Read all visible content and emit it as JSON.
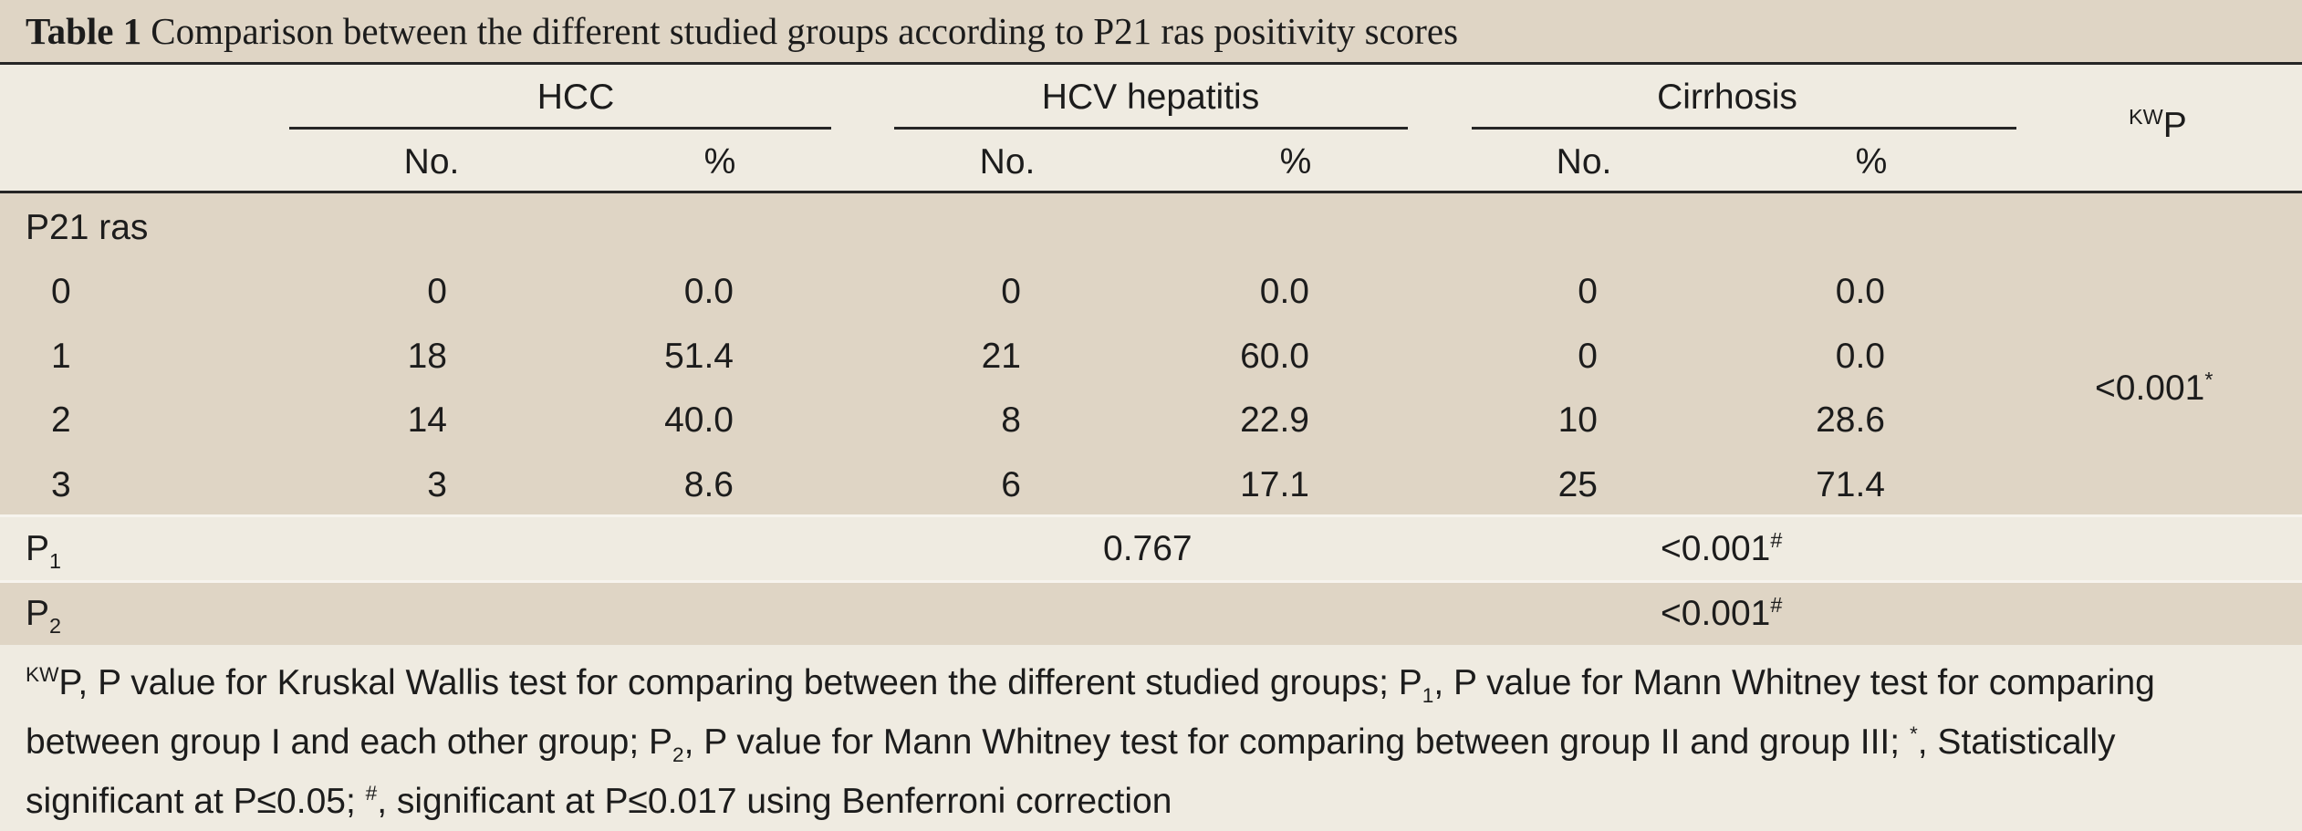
{
  "title": {
    "label": "Table 1",
    "text": "Comparison between the different studied groups according to P21 ras positivity scores"
  },
  "header": {
    "groups": [
      "HCC",
      "HCV hepatitis",
      "Cirrhosis"
    ],
    "subcols": [
      "No.",
      "%",
      "No.",
      "%",
      "No.",
      "%"
    ],
    "kw_sup": "KW",
    "kw_p": "P"
  },
  "row_group_label": "P21 ras",
  "rows": [
    {
      "score": "0",
      "hcc_no": "0",
      "hcc_pct": "0.0",
      "hcv_no": "0",
      "hcv_pct": "0.0",
      "cir_no": "0",
      "cir_pct": "0.0"
    },
    {
      "score": "1",
      "hcc_no": "18",
      "hcc_pct": "51.4",
      "hcv_no": "21",
      "hcv_pct": "60.0",
      "cir_no": "0",
      "cir_pct": "0.0"
    },
    {
      "score": "2",
      "hcc_no": "14",
      "hcc_pct": "40.0",
      "hcv_no": "8",
      "hcv_pct": "22.9",
      "cir_no": "10",
      "cir_pct": "28.6"
    },
    {
      "score": "3",
      "hcc_no": "3",
      "hcc_pct": "8.6",
      "hcv_no": "6",
      "hcv_pct": "17.1",
      "cir_no": "25",
      "cir_pct": "71.4"
    }
  ],
  "kw_value": "<0.001",
  "kw_value_mark": "*",
  "p1": {
    "label": "P",
    "sub": "1",
    "hcv": "0.767",
    "cirrhosis": "<0.001",
    "cirrhosis_mark": "#"
  },
  "p2": {
    "label": "P",
    "sub": "2",
    "cirrhosis": "<0.001",
    "cirrhosis_mark": "#"
  },
  "footnote": {
    "kw_sup": "KW",
    "part1": "P, P value for Kruskal Wallis test for comparing between the different studied groups; P",
    "p1_sub": "1",
    "part2": ", P value for Mann Whitney test for comparing between group I and each other group; P",
    "p2_sub": "2",
    "part3": ", P value for Mann Whitney test for comparing between group II and group III; ",
    "star": "*",
    "part4": ", Statistically significant at P≤0.05; ",
    "hash": "#",
    "part5": ", significant at P≤0.017 using Benferroni correction"
  }
}
